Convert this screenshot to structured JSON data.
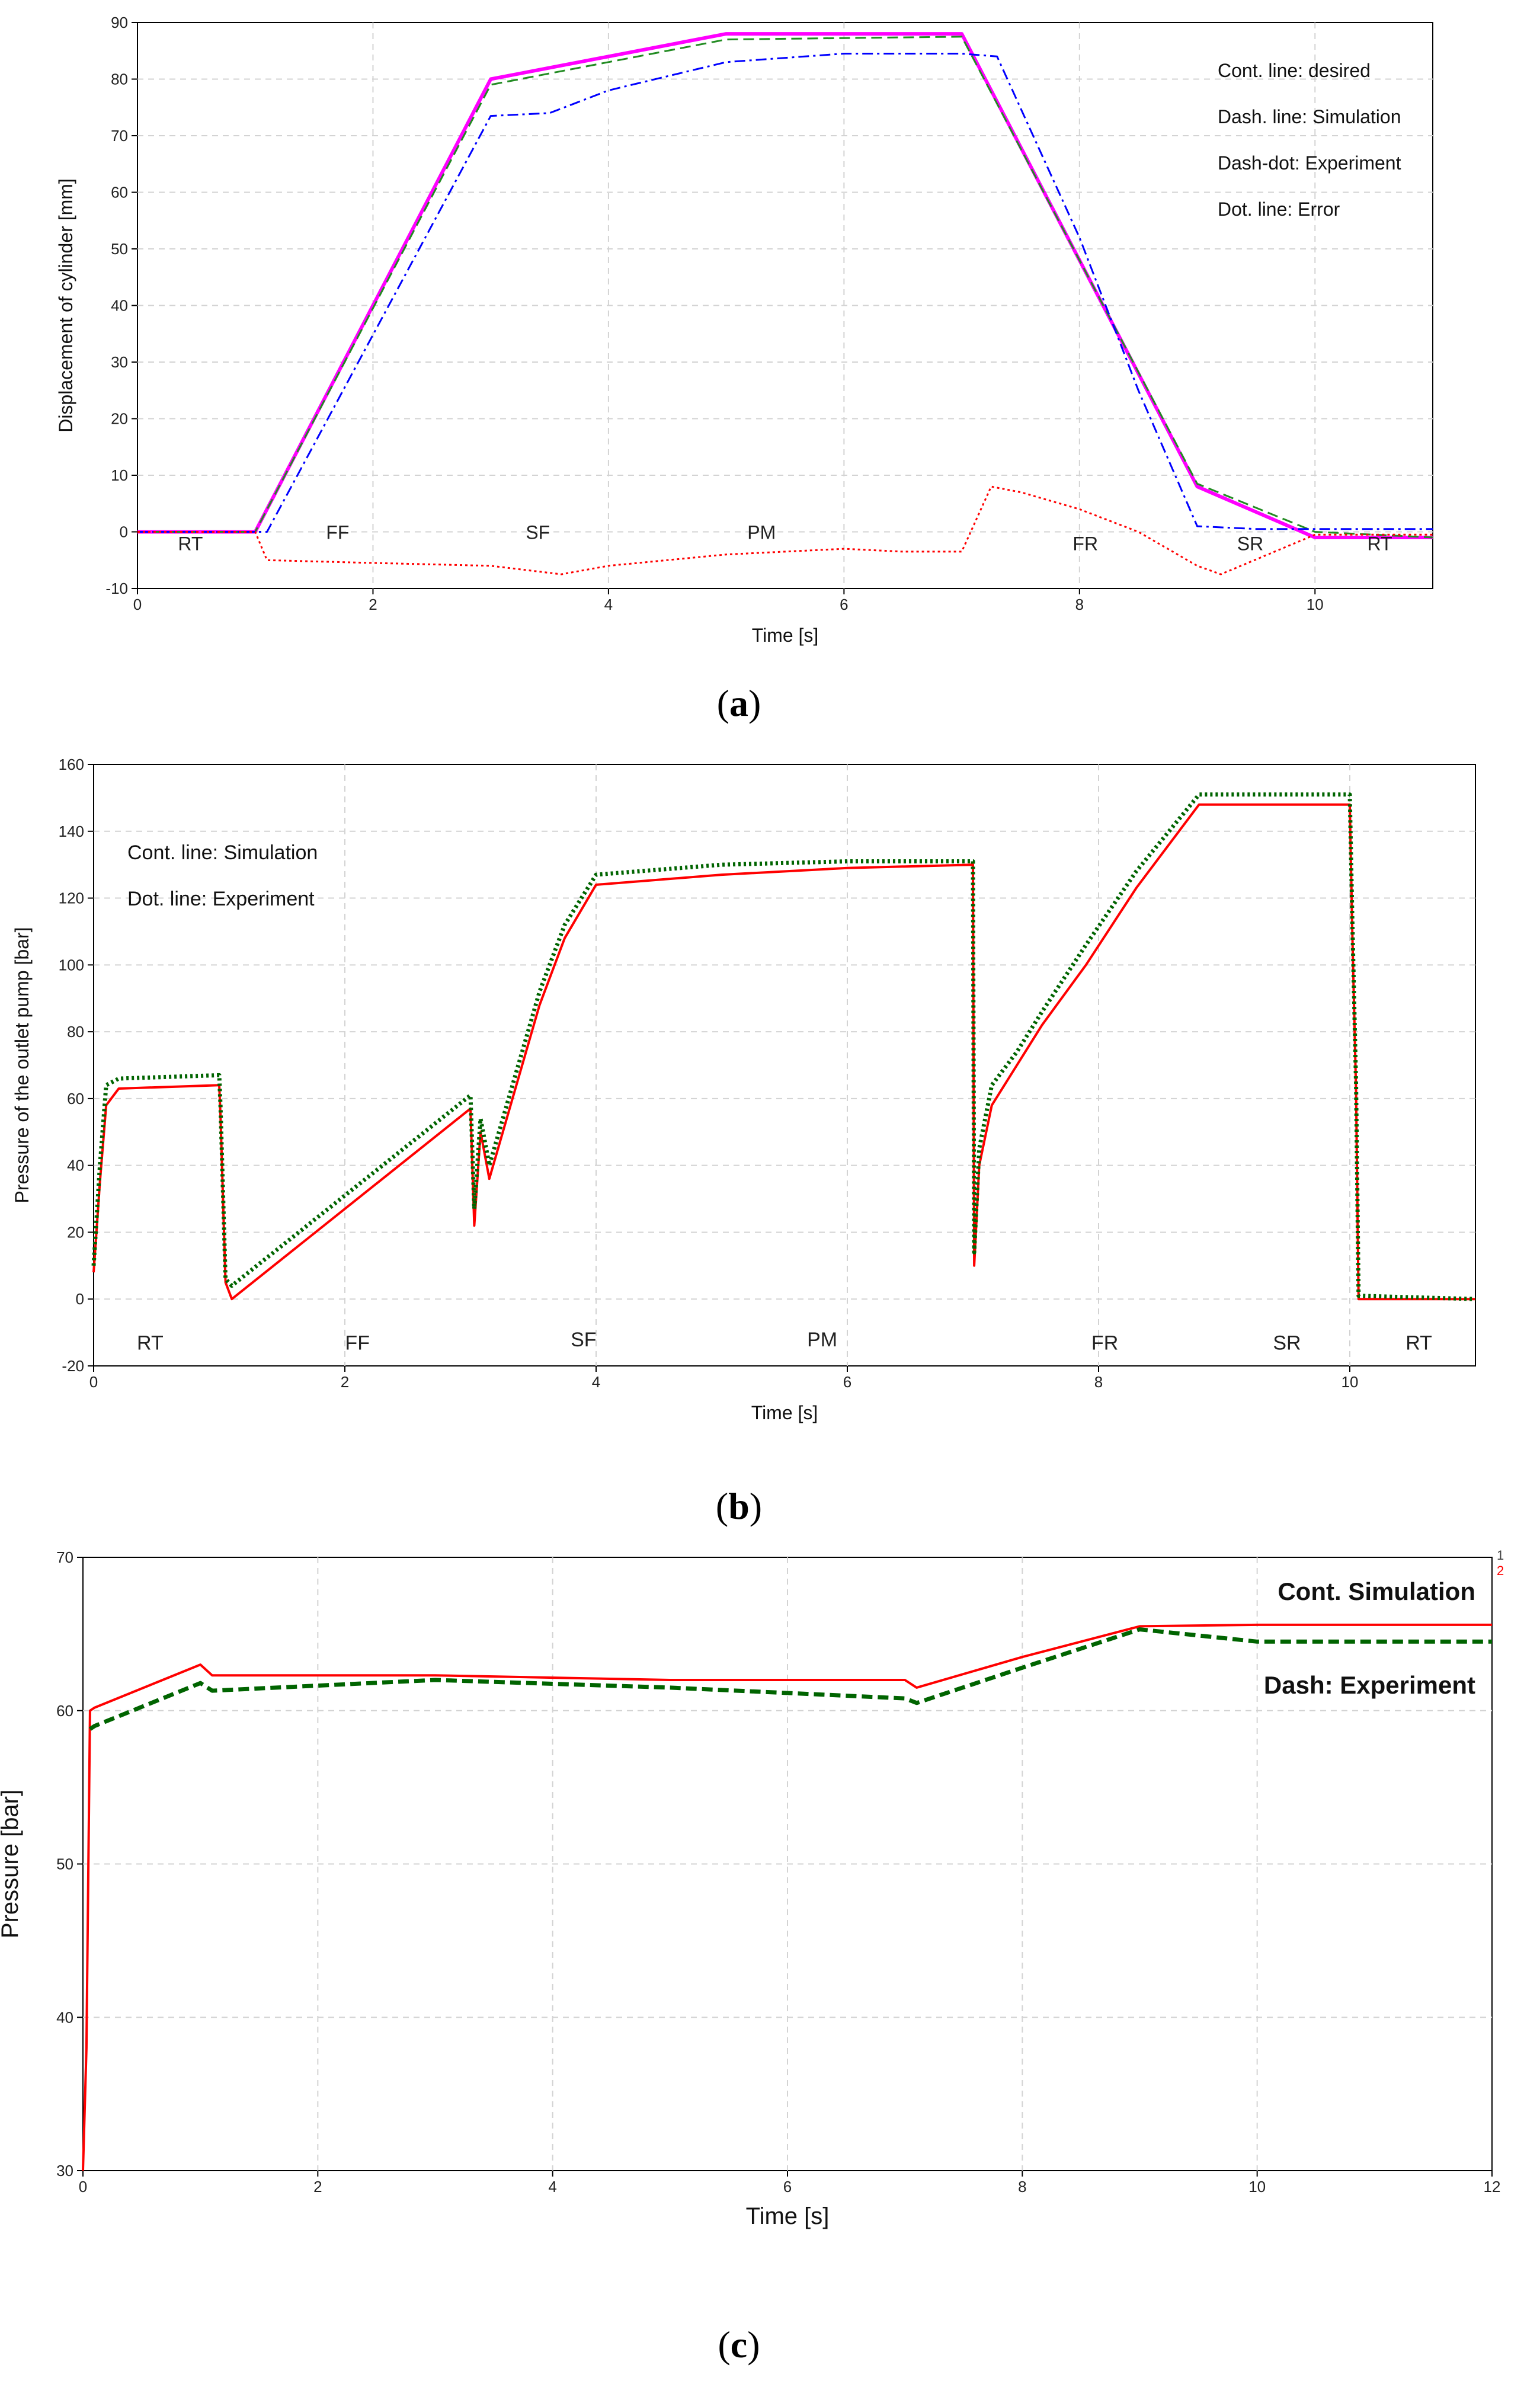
{
  "colors": {
    "desired": "#ff00ff",
    "simulation_a": "#228b22",
    "experiment_a": "#0000ff",
    "error": "#ff0000",
    "simulation_red": "#ff0000",
    "experiment_green": "#006400",
    "grid": "#d3d3d3",
    "axis": "#000000"
  },
  "chart_data": [
    {
      "id": "a",
      "type": "line",
      "caption_letter": "a",
      "xlabel": "Time [s]",
      "ylabel": "Displacement of cylinder [mm]",
      "xlim": [
        0,
        11
      ],
      "ylim": [
        -10,
        90
      ],
      "xticks": [
        0,
        2,
        4,
        6,
        8,
        10
      ],
      "yticks": [
        -10,
        0,
        10,
        20,
        30,
        40,
        50,
        60,
        70,
        80,
        90
      ],
      "legend": [
        "Cont. line: desired",
        "Dash. line: Simulation",
        "Dash-dot: Experiment",
        "Dot. line: Error"
      ],
      "legend_position": "top-right",
      "phase_labels": [
        {
          "text": "RT",
          "x": 0.45,
          "y": -2
        },
        {
          "text": "FF",
          "x": 1.7,
          "y": 0
        },
        {
          "text": "SF",
          "x": 3.4,
          "y": 0
        },
        {
          "text": "PM",
          "x": 5.3,
          "y": 0
        },
        {
          "text": "FR",
          "x": 8.05,
          "y": -2
        },
        {
          "text": "SR",
          "x": 9.45,
          "y": -2
        },
        {
          "text": "RT",
          "x": 10.55,
          "y": -2
        }
      ],
      "series": [
        {
          "name": "desired",
          "style": "solid",
          "color_key": "desired",
          "x": [
            0,
            1,
            3,
            5,
            7,
            9,
            10,
            11
          ],
          "y": [
            0,
            0,
            80,
            88,
            88,
            8,
            -1,
            -1
          ]
        },
        {
          "name": "Simulation",
          "style": "dashed",
          "color_key": "simulation_a",
          "x": [
            0,
            1,
            3,
            4,
            5,
            7,
            9,
            10,
            11
          ],
          "y": [
            0,
            0,
            79,
            83,
            87,
            87.5,
            8.5,
            0,
            -1
          ]
        },
        {
          "name": "Experiment",
          "style": "dashdot",
          "color_key": "experiment_a",
          "x": [
            0,
            1.1,
            3,
            3.5,
            4,
            5,
            6,
            7,
            7.3,
            8,
            8.5,
            9,
            9.5,
            10,
            11
          ],
          "y": [
            0,
            0,
            73.5,
            74,
            78,
            83,
            84.5,
            84.5,
            84,
            52,
            25,
            1,
            0.5,
            0.5,
            0.5
          ]
        },
        {
          "name": "Error",
          "style": "dotted",
          "color_key": "error",
          "x": [
            0,
            1,
            1.1,
            2,
            3,
            3.6,
            4,
            5,
            6,
            6.5,
            7,
            7.25,
            7.5,
            8,
            8.5,
            9,
            9.2,
            9.6,
            10,
            11
          ],
          "y": [
            0,
            0,
            -5,
            -5.5,
            -6,
            -7.5,
            -6,
            -4,
            -3,
            -3.5,
            -3.5,
            8,
            7,
            4,
            0,
            -6,
            -7.5,
            -4,
            -0.5,
            -0.5
          ]
        }
      ]
    },
    {
      "id": "b",
      "type": "line",
      "caption_letter": "b",
      "xlabel": "Time [s]",
      "ylabel": "Pressure of the outlet pump [bar]",
      "xlim": [
        0,
        11
      ],
      "ylim": [
        -20,
        160
      ],
      "xticks": [
        0,
        2,
        4,
        6,
        8,
        10
      ],
      "yticks": [
        -20,
        0,
        20,
        40,
        60,
        80,
        100,
        120,
        140,
        160
      ],
      "legend": [
        "Cont. line: Simulation",
        "Dot. line: Experiment"
      ],
      "legend_position": "top-left",
      "phase_labels": [
        {
          "text": "RT",
          "x": 0.45,
          "y": -13
        },
        {
          "text": "FF",
          "x": 2.1,
          "y": -13
        },
        {
          "text": "SF",
          "x": 3.9,
          "y": -12
        },
        {
          "text": "PM",
          "x": 5.8,
          "y": -12
        },
        {
          "text": "FR",
          "x": 8.05,
          "y": -13
        },
        {
          "text": "SR",
          "x": 9.5,
          "y": -13
        },
        {
          "text": "RT",
          "x": 10.55,
          "y": -13
        }
      ],
      "series": [
        {
          "name": "Simulation",
          "style": "solid",
          "color_key": "simulation_red",
          "x": [
            0,
            0.05,
            0.1,
            0.2,
            1,
            1.01,
            1.05,
            1.1,
            3,
            3.03,
            3.08,
            3.15,
            3.35,
            3.55,
            3.75,
            4,
            5,
            6,
            7,
            7.01,
            7.05,
            7.15,
            7.35,
            7.55,
            7.9,
            8.3,
            8.8,
            10,
            10.02,
            10.05,
            10.07,
            11
          ],
          "y": [
            8,
            35,
            58,
            63,
            64,
            55,
            5,
            0,
            57,
            22,
            50,
            36,
            62,
            88,
            108,
            124,
            127,
            129,
            130,
            10,
            40,
            58,
            70,
            82,
            100,
            123,
            148,
            148,
            110,
            62,
            0,
            0
          ]
        },
        {
          "name": "Experiment",
          "style": "dotted",
          "color_key": "experiment_green",
          "x": [
            0,
            0.05,
            0.1,
            0.2,
            1,
            1.01,
            1.05,
            1.1,
            3,
            3.03,
            3.08,
            3.15,
            3.35,
            3.55,
            3.75,
            4,
            5,
            6,
            7,
            7.01,
            7.05,
            7.15,
            7.35,
            7.55,
            7.9,
            8.3,
            8.8,
            10,
            10.02,
            10.05,
            10.07,
            11
          ],
          "y": [
            10,
            40,
            64,
            66,
            67,
            58,
            6,
            4,
            61,
            27,
            54,
            40,
            66,
            92,
            112,
            127,
            130,
            131,
            131,
            14,
            45,
            64,
            74,
            86,
            106,
            128,
            151,
            151,
            114,
            64,
            1,
            0
          ]
        }
      ]
    },
    {
      "id": "c",
      "type": "line",
      "caption_letter": "c",
      "xlabel": "Time [s]",
      "ylabel": "Pressure [bar]",
      "xlim": [
        0,
        12
      ],
      "ylim": [
        30,
        70
      ],
      "xticks": [
        0,
        2,
        4,
        6,
        8,
        10,
        12
      ],
      "yticks": [
        30,
        40,
        50,
        60,
        70
      ],
      "legend": [
        "Cont. Simulation",
        "Dash: Experiment"
      ],
      "legend_position": "top-right",
      "corner_labels": [
        "1",
        "2"
      ],
      "series": [
        {
          "name": "Simulation",
          "style": "solid",
          "color_key": "simulation_red",
          "x": [
            0,
            0.03,
            0.06,
            0.1,
            1,
            1.1,
            3,
            5,
            7,
            7.1,
            8,
            9,
            10,
            12
          ],
          "y": [
            30,
            38,
            60,
            60.2,
            63,
            62.3,
            62.3,
            62,
            62,
            61.5,
            63.5,
            65.5,
            65.6,
            65.6
          ]
        },
        {
          "name": "Experiment",
          "style": "dashed",
          "color_key": "experiment_green",
          "x": [
            0.06,
            0.1,
            1,
            1.1,
            3,
            5,
            7,
            7.1,
            8,
            9,
            10,
            12
          ],
          "y": [
            58.8,
            59,
            61.8,
            61.3,
            62,
            61.5,
            60.8,
            60.5,
            62.8,
            65.3,
            64.5,
            64.5
          ]
        }
      ]
    }
  ]
}
